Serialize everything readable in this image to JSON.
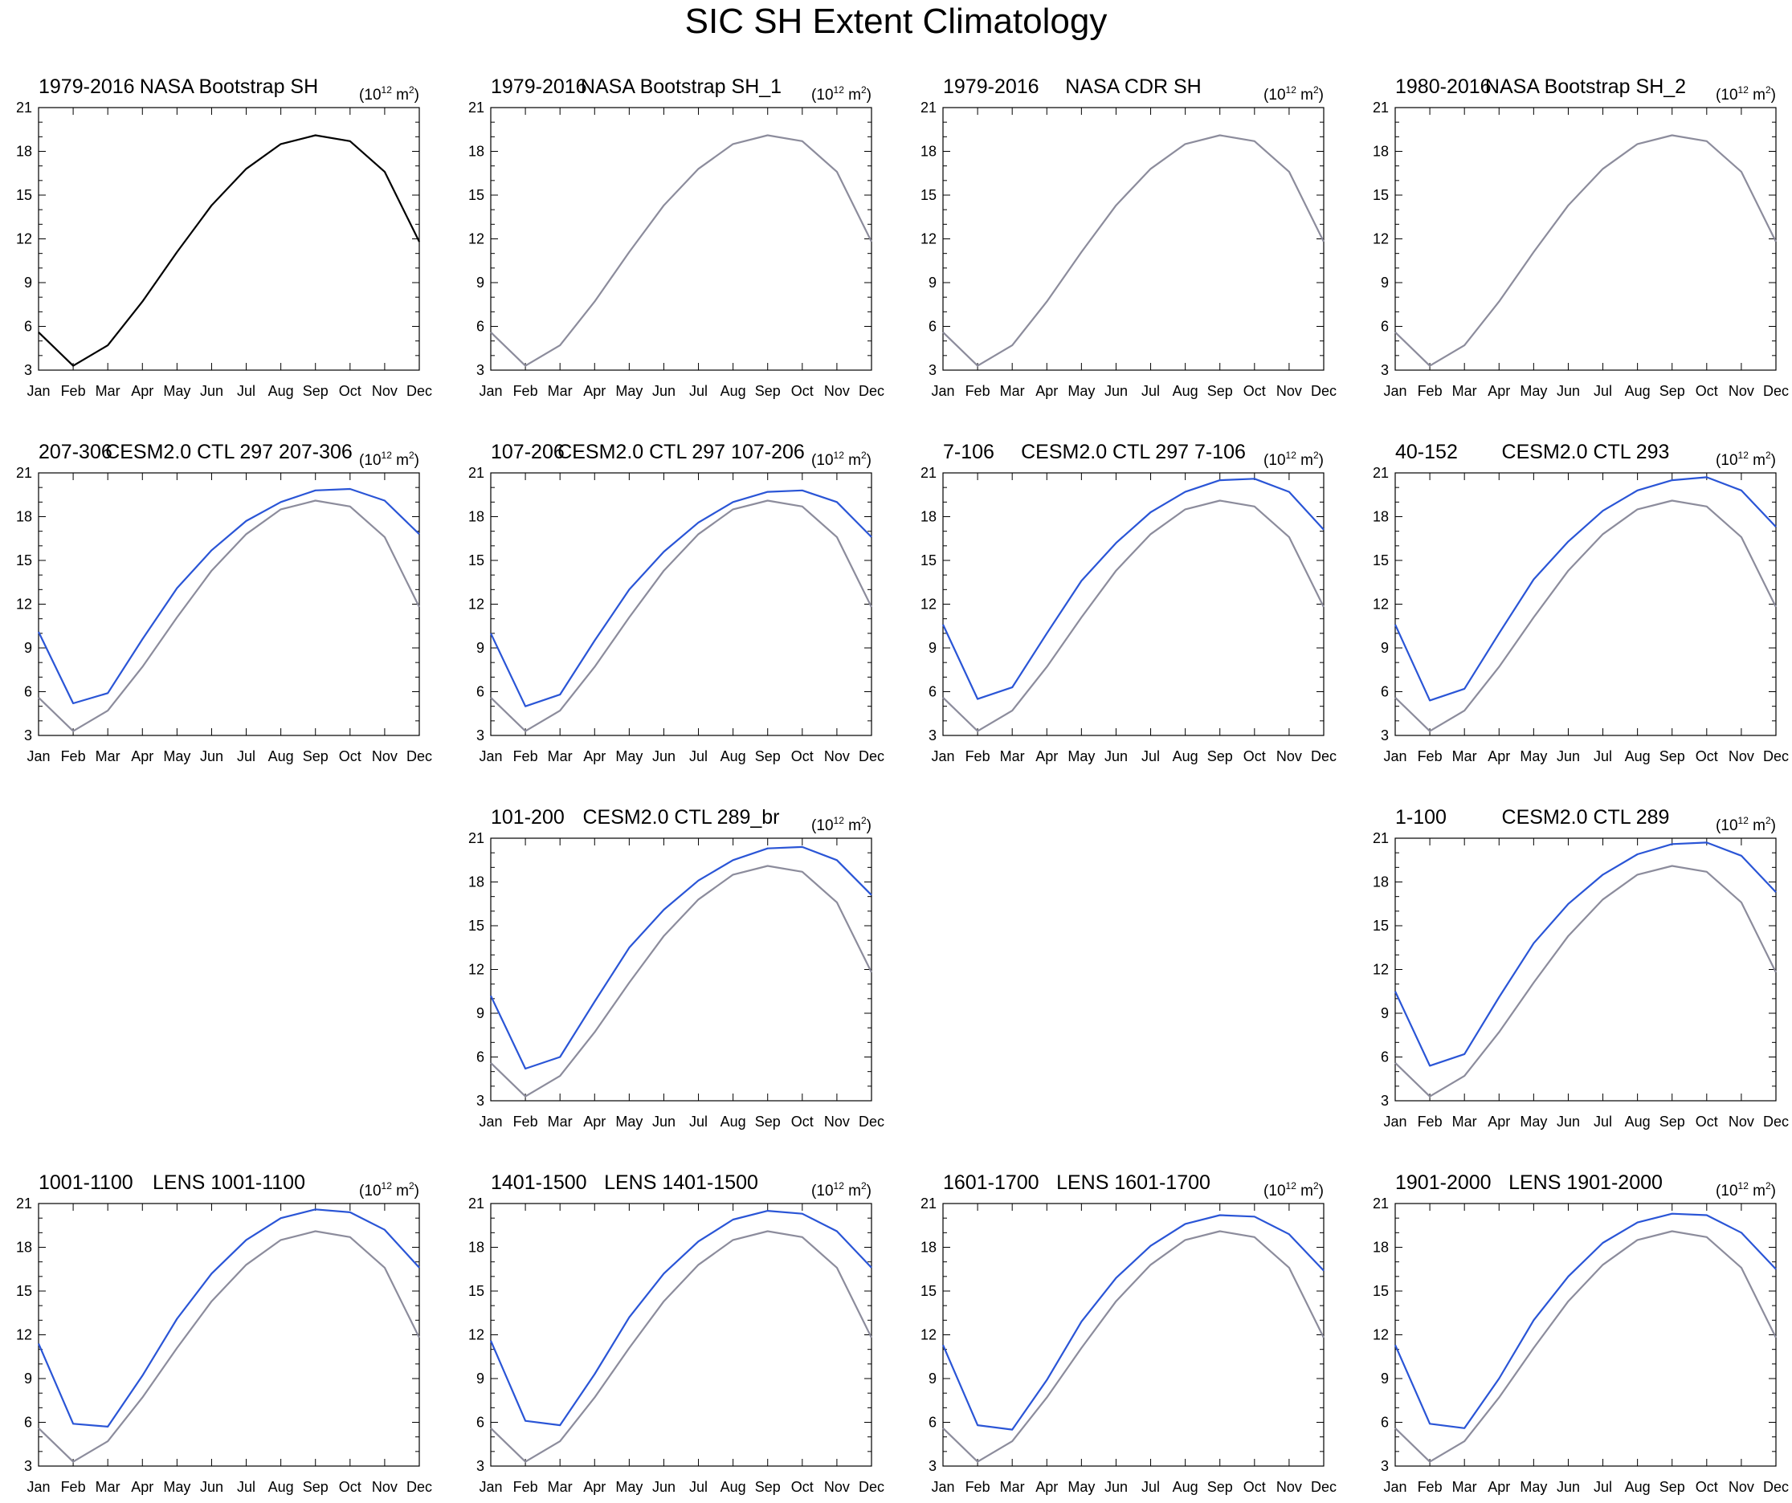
{
  "title": "SIC SH Extent Climatology",
  "colors": {
    "observed_black": "#000000",
    "observed_gray": "#8c8c9c",
    "model_blue": "#2a55d6",
    "axis": "#000000"
  },
  "chart_data": [
    {
      "type": "line",
      "left_label": "1979-2016",
      "center_label": "NASA Bootstrap SH",
      "right_label": {
        "base": "(10",
        "exp": "12",
        "unit": " m",
        "unit_exp": "2",
        ")": ")"
      },
      "categories": [
        "Jan",
        "Feb",
        "Mar",
        "Apr",
        "May",
        "Jun",
        "Jul",
        "Aug",
        "Sep",
        "Oct",
        "Nov",
        "Dec"
      ],
      "yticks": [
        3,
        6,
        9,
        12,
        15,
        18,
        21
      ],
      "ylim": [
        3,
        21
      ],
      "series": [
        {
          "values": [
            5.6,
            3.3,
            4.7,
            7.7,
            11.1,
            14.3,
            16.8,
            18.5,
            19.1,
            18.7,
            16.6,
            11.8
          ],
          "color": "#000000"
        }
      ]
    },
    {
      "type": "line",
      "left_label": "1979-2016",
      "center_label": "NASA Bootstrap SH_1",
      "right_label": {
        "base": "(10",
        "exp": "12",
        "unit": " m",
        "unit_exp": "2",
        ")": ")"
      },
      "categories": [
        "Jan",
        "Feb",
        "Mar",
        "Apr",
        "May",
        "Jun",
        "Jul",
        "Aug",
        "Sep",
        "Oct",
        "Nov",
        "Dec"
      ],
      "yticks": [
        3,
        6,
        9,
        12,
        15,
        18,
        21
      ],
      "ylim": [
        3,
        21
      ],
      "series": [
        {
          "values": [
            5.6,
            3.3,
            4.7,
            7.7,
            11.1,
            14.3,
            16.8,
            18.5,
            19.1,
            18.7,
            16.6,
            11.8
          ],
          "color": "#8c8c9c"
        }
      ]
    },
    {
      "type": "line",
      "left_label": "1979-2016",
      "center_label": "NASA CDR SH",
      "right_label": {
        "base": "(10",
        "exp": "12",
        "unit": " m",
        "unit_exp": "2",
        ")": ")"
      },
      "categories": [
        "Jan",
        "Feb",
        "Mar",
        "Apr",
        "May",
        "Jun",
        "Jul",
        "Aug",
        "Sep",
        "Oct",
        "Nov",
        "Dec"
      ],
      "yticks": [
        3,
        6,
        9,
        12,
        15,
        18,
        21
      ],
      "ylim": [
        3,
        21
      ],
      "series": [
        {
          "values": [
            5.6,
            3.3,
            4.7,
            7.7,
            11.1,
            14.3,
            16.8,
            18.5,
            19.1,
            18.7,
            16.6,
            11.8
          ],
          "color": "#8c8c9c"
        }
      ]
    },
    {
      "type": "line",
      "left_label": "1980-2016",
      "center_label": "NASA Bootstrap SH_2",
      "right_label": {
        "base": "(10",
        "exp": "12",
        "unit": " m",
        "unit_exp": "2",
        ")": ")"
      },
      "categories": [
        "Jan",
        "Feb",
        "Mar",
        "Apr",
        "May",
        "Jun",
        "Jul",
        "Aug",
        "Sep",
        "Oct",
        "Nov",
        "Dec"
      ],
      "yticks": [
        3,
        6,
        9,
        12,
        15,
        18,
        21
      ],
      "ylim": [
        3,
        21
      ],
      "series": [
        {
          "values": [
            5.6,
            3.3,
            4.7,
            7.7,
            11.1,
            14.3,
            16.8,
            18.5,
            19.1,
            18.7,
            16.6,
            11.8
          ],
          "color": "#8c8c9c"
        }
      ]
    },
    {
      "type": "line",
      "left_label": "207-306",
      "center_label": "CESM2.0 CTL 297 207-306",
      "right_label": {
        "base": "(10",
        "exp": "12",
        "unit": " m",
        "unit_exp": "2",
        ")": ")"
      },
      "categories": [
        "Jan",
        "Feb",
        "Mar",
        "Apr",
        "May",
        "Jun",
        "Jul",
        "Aug",
        "Sep",
        "Oct",
        "Nov",
        "Dec"
      ],
      "yticks": [
        3,
        6,
        9,
        12,
        15,
        18,
        21
      ],
      "ylim": [
        3,
        21
      ],
      "series": [
        {
          "values": [
            10.1,
            5.2,
            5.9,
            9.6,
            13.1,
            15.7,
            17.7,
            19.0,
            19.8,
            19.9,
            19.1,
            16.8
          ],
          "color": "#2a55d6"
        },
        {
          "values": [
            5.6,
            3.3,
            4.7,
            7.7,
            11.1,
            14.3,
            16.8,
            18.5,
            19.1,
            18.7,
            16.6,
            11.8
          ],
          "color": "#8c8c9c"
        }
      ]
    },
    {
      "type": "line",
      "left_label": "107-206",
      "center_label": "CESM2.0 CTL 297 107-206",
      "right_label": {
        "base": "(10",
        "exp": "12",
        "unit": " m",
        "unit_exp": "2",
        ")": ")"
      },
      "categories": [
        "Jan",
        "Feb",
        "Mar",
        "Apr",
        "May",
        "Jun",
        "Jul",
        "Aug",
        "Sep",
        "Oct",
        "Nov",
        "Dec"
      ],
      "yticks": [
        3,
        6,
        9,
        12,
        15,
        18,
        21
      ],
      "ylim": [
        3,
        21
      ],
      "series": [
        {
          "values": [
            10.0,
            5.0,
            5.8,
            9.5,
            13.0,
            15.6,
            17.6,
            19.0,
            19.7,
            19.8,
            19.0,
            16.6
          ],
          "color": "#2a55d6"
        },
        {
          "values": [
            5.6,
            3.3,
            4.7,
            7.7,
            11.1,
            14.3,
            16.8,
            18.5,
            19.1,
            18.7,
            16.6,
            11.8
          ],
          "color": "#8c8c9c"
        }
      ]
    },
    {
      "type": "line",
      "left_label": "7-106",
      "center_label": "CESM2.0 CTL 297 7-106",
      "right_label": {
        "base": "(10",
        "exp": "12",
        "unit": " m",
        "unit_exp": "2",
        ")": ")"
      },
      "categories": [
        "Jan",
        "Feb",
        "Mar",
        "Apr",
        "May",
        "Jun",
        "Jul",
        "Aug",
        "Sep",
        "Oct",
        "Nov",
        "Dec"
      ],
      "yticks": [
        3,
        6,
        9,
        12,
        15,
        18,
        21
      ],
      "ylim": [
        3,
        21
      ],
      "series": [
        {
          "values": [
            10.6,
            5.5,
            6.3,
            10.0,
            13.6,
            16.2,
            18.3,
            19.7,
            20.5,
            20.6,
            19.7,
            17.1
          ],
          "color": "#2a55d6"
        },
        {
          "values": [
            5.6,
            3.3,
            4.7,
            7.7,
            11.1,
            14.3,
            16.8,
            18.5,
            19.1,
            18.7,
            16.6,
            11.8
          ],
          "color": "#8c8c9c"
        }
      ]
    },
    {
      "type": "line",
      "left_label": "40-152",
      "center_label": "CESM2.0 CTL 293",
      "right_label": {
        "base": "(10",
        "exp": "12",
        "unit": " m",
        "unit_exp": "2",
        ")": ")"
      },
      "categories": [
        "Jan",
        "Feb",
        "Mar",
        "Apr",
        "May",
        "Jun",
        "Jul",
        "Aug",
        "Sep",
        "Oct",
        "Nov",
        "Dec"
      ],
      "yticks": [
        3,
        6,
        9,
        12,
        15,
        18,
        21
      ],
      "ylim": [
        3,
        21
      ],
      "series": [
        {
          "values": [
            10.6,
            5.4,
            6.2,
            10.0,
            13.7,
            16.3,
            18.4,
            19.8,
            20.5,
            20.7,
            19.8,
            17.3
          ],
          "color": "#2a55d6"
        },
        {
          "values": [
            5.6,
            3.3,
            4.7,
            7.7,
            11.1,
            14.3,
            16.8,
            18.5,
            19.1,
            18.7,
            16.6,
            11.8
          ],
          "color": "#8c8c9c"
        }
      ]
    },
    {
      "type": "line",
      "left_label": "101-200",
      "center_label": "CESM2.0 CTL 289_br",
      "right_label": {
        "base": "(10",
        "exp": "12",
        "unit": " m",
        "unit_exp": "2",
        ")": ")"
      },
      "categories": [
        "Jan",
        "Feb",
        "Mar",
        "Apr",
        "May",
        "Jun",
        "Jul",
        "Aug",
        "Sep",
        "Oct",
        "Nov",
        "Dec"
      ],
      "yticks": [
        3,
        6,
        9,
        12,
        15,
        18,
        21
      ],
      "ylim": [
        3,
        21
      ],
      "series": [
        {
          "values": [
            10.2,
            5.2,
            6.0,
            9.8,
            13.5,
            16.1,
            18.1,
            19.5,
            20.3,
            20.4,
            19.5,
            17.1
          ],
          "color": "#2a55d6"
        },
        {
          "values": [
            5.6,
            3.3,
            4.7,
            7.7,
            11.1,
            14.3,
            16.8,
            18.5,
            19.1,
            18.7,
            16.6,
            11.8
          ],
          "color": "#8c8c9c"
        }
      ]
    },
    {
      "type": "line",
      "left_label": "1-100",
      "center_label": "CESM2.0 CTL 289",
      "right_label": {
        "base": "(10",
        "exp": "12",
        "unit": " m",
        "unit_exp": "2",
        ")": ")"
      },
      "categories": [
        "Jan",
        "Feb",
        "Mar",
        "Apr",
        "May",
        "Jun",
        "Jul",
        "Aug",
        "Sep",
        "Oct",
        "Nov",
        "Dec"
      ],
      "yticks": [
        3,
        6,
        9,
        12,
        15,
        18,
        21
      ],
      "ylim": [
        3,
        21
      ],
      "series": [
        {
          "values": [
            10.5,
            5.4,
            6.2,
            10.1,
            13.8,
            16.5,
            18.5,
            19.9,
            20.6,
            20.7,
            19.8,
            17.3
          ],
          "color": "#2a55d6"
        },
        {
          "values": [
            5.6,
            3.3,
            4.7,
            7.7,
            11.1,
            14.3,
            16.8,
            18.5,
            19.1,
            18.7,
            16.6,
            11.8
          ],
          "color": "#8c8c9c"
        }
      ]
    },
    {
      "type": "line",
      "left_label": "1001-1100",
      "center_label": "LENS 1001-1100",
      "right_label": {
        "base": "(10",
        "exp": "12",
        "unit": " m",
        "unit_exp": "2",
        ")": ")"
      },
      "categories": [
        "Jan",
        "Feb",
        "Mar",
        "Apr",
        "May",
        "Jun",
        "Jul",
        "Aug",
        "Sep",
        "Oct",
        "Nov",
        "Dec"
      ],
      "yticks": [
        3,
        6,
        9,
        12,
        15,
        18,
        21
      ],
      "ylim": [
        3,
        21
      ],
      "series": [
        {
          "values": [
            11.4,
            5.9,
            5.7,
            9.2,
            13.1,
            16.2,
            18.5,
            20.0,
            20.6,
            20.4,
            19.2,
            16.6
          ],
          "color": "#2a55d6"
        },
        {
          "values": [
            5.6,
            3.3,
            4.7,
            7.7,
            11.1,
            14.3,
            16.8,
            18.5,
            19.1,
            18.7,
            16.6,
            11.8
          ],
          "color": "#8c8c9c"
        }
      ]
    },
    {
      "type": "line",
      "left_label": "1401-1500",
      "center_label": "LENS 1401-1500",
      "right_label": {
        "base": "(10",
        "exp": "12",
        "unit": " m",
        "unit_exp": "2",
        ")": ")"
      },
      "categories": [
        "Jan",
        "Feb",
        "Mar",
        "Apr",
        "May",
        "Jun",
        "Jul",
        "Aug",
        "Sep",
        "Oct",
        "Nov",
        "Dec"
      ],
      "yticks": [
        3,
        6,
        9,
        12,
        15,
        18,
        21
      ],
      "ylim": [
        3,
        21
      ],
      "series": [
        {
          "values": [
            11.6,
            6.1,
            5.8,
            9.3,
            13.2,
            16.2,
            18.4,
            19.9,
            20.5,
            20.3,
            19.1,
            16.6
          ],
          "color": "#2a55d6"
        },
        {
          "values": [
            5.6,
            3.3,
            4.7,
            7.7,
            11.1,
            14.3,
            16.8,
            18.5,
            19.1,
            18.7,
            16.6,
            11.8
          ],
          "color": "#8c8c9c"
        }
      ]
    },
    {
      "type": "line",
      "left_label": "1601-1700",
      "center_label": "LENS 1601-1700",
      "right_label": {
        "base": "(10",
        "exp": "12",
        "unit": " m",
        "unit_exp": "2",
        ")": ")"
      },
      "categories": [
        "Jan",
        "Feb",
        "Mar",
        "Apr",
        "May",
        "Jun",
        "Jul",
        "Aug",
        "Sep",
        "Oct",
        "Nov",
        "Dec"
      ],
      "yticks": [
        3,
        6,
        9,
        12,
        15,
        18,
        21
      ],
      "ylim": [
        3,
        21
      ],
      "series": [
        {
          "values": [
            11.3,
            5.8,
            5.5,
            8.9,
            12.9,
            15.9,
            18.1,
            19.6,
            20.2,
            20.1,
            18.9,
            16.4
          ],
          "color": "#2a55d6"
        },
        {
          "values": [
            5.6,
            3.3,
            4.7,
            7.7,
            11.1,
            14.3,
            16.8,
            18.5,
            19.1,
            18.7,
            16.6,
            11.8
          ],
          "color": "#8c8c9c"
        }
      ]
    },
    {
      "type": "line",
      "left_label": "1901-2000",
      "center_label": "LENS 1901-2000",
      "right_label": {
        "base": "(10",
        "exp": "12",
        "unit": " m",
        "unit_exp": "2",
        ")": ")"
      },
      "categories": [
        "Jan",
        "Feb",
        "Mar",
        "Apr",
        "May",
        "Jun",
        "Jul",
        "Aug",
        "Sep",
        "Oct",
        "Nov",
        "Dec"
      ],
      "yticks": [
        3,
        6,
        9,
        12,
        15,
        18,
        21
      ],
      "ylim": [
        3,
        21
      ],
      "series": [
        {
          "values": [
            11.3,
            5.9,
            5.6,
            9.0,
            13.0,
            16.0,
            18.3,
            19.7,
            20.3,
            20.2,
            19.0,
            16.5
          ],
          "color": "#2a55d6"
        },
        {
          "values": [
            5.6,
            3.3,
            4.7,
            7.7,
            11.1,
            14.3,
            16.8,
            18.5,
            19.1,
            18.7,
            16.6,
            11.8
          ],
          "color": "#8c8c9c"
        }
      ]
    }
  ]
}
